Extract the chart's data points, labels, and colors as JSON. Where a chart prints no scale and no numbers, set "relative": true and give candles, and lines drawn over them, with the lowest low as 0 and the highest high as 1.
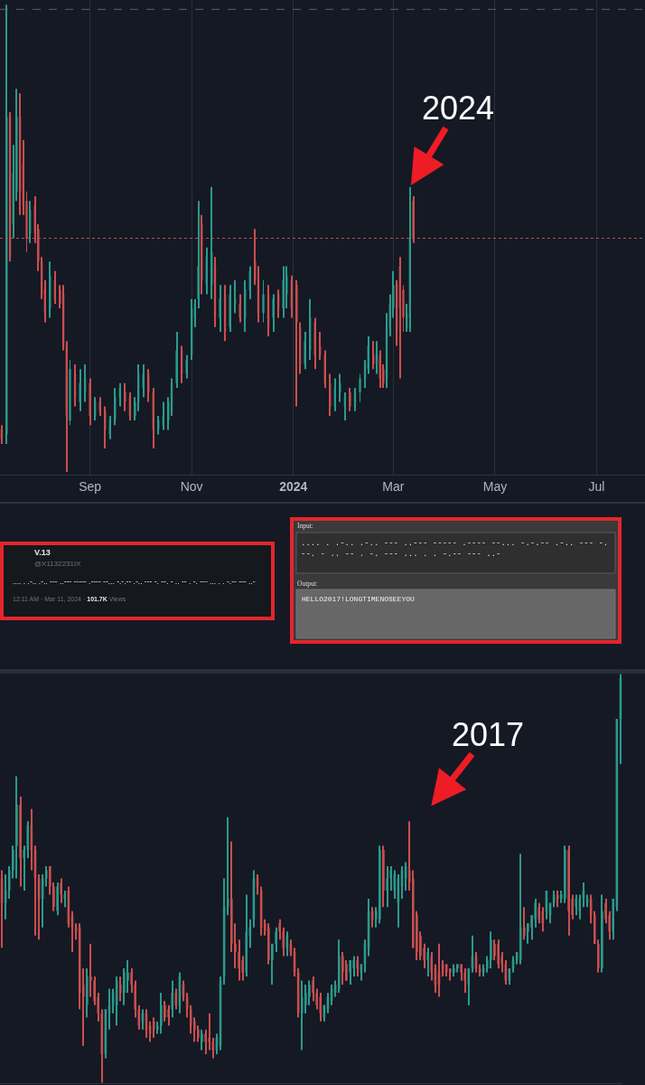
{
  "chart_data": [
    {
      "type": "candlestick",
      "relative": true,
      "x": [
        "2023-07-10",
        "2023-07-13",
        "2023-07-15",
        "2023-07-17",
        "2023-07-19",
        "2023-07-21",
        "2023-07-23",
        "2023-07-25",
        "2023-07-27",
        "2023-07-30",
        "2023-08-01",
        "2023-08-03",
        "2023-08-05",
        "2023-08-08",
        "2023-08-11",
        "2023-08-14",
        "2023-08-16",
        "2023-08-18",
        "2023-08-20",
        "2023-08-23",
        "2023-08-26",
        "2023-08-29",
        "2023-09-01",
        "2023-09-04",
        "2023-09-07",
        "2023-09-10",
        "2023-09-13",
        "2023-09-16",
        "2023-09-19",
        "2023-09-22",
        "2023-09-25",
        "2023-09-28",
        "2023-09-30",
        "2023-10-03",
        "2023-10-06",
        "2023-10-09",
        "2023-10-12",
        "2023-10-15",
        "2023-10-18",
        "2023-10-20",
        "2023-10-23",
        "2023-10-26",
        "2023-10-29",
        "2023-11-01",
        "2023-11-03",
        "2023-11-05",
        "2023-11-07",
        "2023-11-10",
        "2023-11-13",
        "2023-11-15",
        "2023-11-18",
        "2023-11-21",
        "2023-11-24",
        "2023-11-27",
        "2023-11-30",
        "2023-12-03",
        "2023-12-06",
        "2023-12-09",
        "2023-12-11",
        "2023-12-14",
        "2023-12-17",
        "2023-12-20",
        "2023-12-23",
        "2023-12-26",
        "2023-12-28",
        "2023-12-31",
        "2024-01-03",
        "2024-01-05",
        "2024-01-08",
        "2024-01-11",
        "2024-01-14",
        "2024-01-17",
        "2024-01-20",
        "2024-01-23",
        "2024-01-26",
        "2024-01-29",
        "2024-02-01",
        "2024-02-04",
        "2024-02-07",
        "2024-02-10",
        "2024-02-13",
        "2024-02-15",
        "2024-02-18",
        "2024-02-20",
        "2024-02-22",
        "2024-02-24",
        "2024-02-26",
        "2024-02-28",
        "2024-03-01",
        "2024-03-03",
        "2024-03-05",
        "2024-03-07",
        "2024-03-09",
        "2024-03-11",
        "2024-03-13"
      ],
      "ohlc": [
        [
          0.09,
          0.1,
          0.06,
          0.07
        ],
        [
          0.08,
          1.0,
          0.06,
          0.76
        ],
        [
          0.76,
          0.77,
          0.45,
          0.46
        ],
        [
          0.53,
          0.7,
          0.5,
          0.64
        ],
        [
          0.6,
          0.82,
          0.58,
          0.76
        ],
        [
          0.76,
          0.81,
          0.55,
          0.6
        ],
        [
          0.66,
          0.71,
          0.55,
          0.57
        ],
        [
          0.58,
          0.6,
          0.47,
          0.5
        ],
        [
          0.51,
          0.58,
          0.49,
          0.56
        ],
        [
          0.57,
          0.59,
          0.49,
          0.51
        ],
        [
          0.52,
          0.53,
          0.43,
          0.45
        ],
        [
          0.45,
          0.46,
          0.37,
          0.38
        ],
        [
          0.39,
          0.41,
          0.32,
          0.34
        ],
        [
          0.35,
          0.45,
          0.33,
          0.42
        ],
        [
          0.41,
          0.43,
          0.36,
          0.37
        ],
        [
          0.39,
          0.4,
          0.35,
          0.36
        ],
        [
          0.38,
          0.4,
          0.26,
          0.27
        ],
        [
          0.27,
          0.28,
          0.0,
          0.12
        ],
        [
          0.11,
          0.24,
          0.1,
          0.22
        ],
        [
          0.21,
          0.23,
          0.14,
          0.16
        ],
        [
          0.15,
          0.22,
          0.13,
          0.19
        ],
        [
          0.17,
          0.23,
          0.15,
          0.2
        ],
        [
          0.19,
          0.2,
          0.1,
          0.12
        ],
        [
          0.12,
          0.16,
          0.11,
          0.15
        ],
        [
          0.15,
          0.16,
          0.12,
          0.13
        ],
        [
          0.13,
          0.14,
          0.05,
          0.09
        ],
        [
          0.08,
          0.12,
          0.07,
          0.11
        ],
        [
          0.11,
          0.18,
          0.1,
          0.16
        ],
        [
          0.16,
          0.19,
          0.14,
          0.18
        ],
        [
          0.17,
          0.19,
          0.13,
          0.15
        ],
        [
          0.16,
          0.17,
          0.11,
          0.12
        ],
        [
          0.12,
          0.16,
          0.11,
          0.15
        ],
        [
          0.15,
          0.23,
          0.13,
          0.21
        ],
        [
          0.18,
          0.23,
          0.16,
          0.21
        ],
        [
          0.21,
          0.22,
          0.15,
          0.17
        ],
        [
          0.17,
          0.18,
          0.05,
          0.09
        ],
        [
          0.09,
          0.12,
          0.08,
          0.11
        ],
        [
          0.1,
          0.15,
          0.09,
          0.12
        ],
        [
          0.11,
          0.16,
          0.09,
          0.15
        ],
        [
          0.13,
          0.2,
          0.12,
          0.19
        ],
        [
          0.19,
          0.3,
          0.18,
          0.26
        ],
        [
          0.26,
          0.27,
          0.19,
          0.21
        ],
        [
          0.21,
          0.25,
          0.2,
          0.24
        ],
        [
          0.25,
          0.37,
          0.24,
          0.35
        ],
        [
          0.33,
          0.37,
          0.31,
          0.36
        ],
        [
          0.37,
          0.58,
          0.35,
          0.44
        ],
        [
          0.53,
          0.55,
          0.38,
          0.41
        ],
        [
          0.4,
          0.48,
          0.38,
          0.46
        ],
        [
          0.4,
          0.61,
          0.37,
          0.47
        ],
        [
          0.44,
          0.46,
          0.31,
          0.33
        ],
        [
          0.33,
          0.4,
          0.3,
          0.37
        ],
        [
          0.38,
          0.4,
          0.28,
          0.3
        ],
        [
          0.31,
          0.4,
          0.3,
          0.38
        ],
        [
          0.36,
          0.41,
          0.34,
          0.37
        ],
        [
          0.36,
          0.38,
          0.32,
          0.33
        ],
        [
          0.33,
          0.41,
          0.3,
          0.39
        ],
        [
          0.39,
          0.44,
          0.37,
          0.43
        ],
        [
          0.45,
          0.52,
          0.4,
          0.41
        ],
        [
          0.41,
          0.44,
          0.32,
          0.34
        ],
        [
          0.34,
          0.41,
          0.32,
          0.38
        ],
        [
          0.38,
          0.4,
          0.29,
          0.31
        ],
        [
          0.33,
          0.38,
          0.3,
          0.37
        ],
        [
          0.38,
          0.39,
          0.33,
          0.35
        ],
        [
          0.35,
          0.44,
          0.33,
          0.41
        ],
        [
          0.38,
          0.44,
          0.35,
          0.42
        ],
        [
          0.41,
          0.42,
          0.33,
          0.35
        ],
        [
          0.4,
          0.41,
          0.14,
          0.32
        ],
        [
          0.31,
          0.32,
          0.21,
          0.23
        ],
        [
          0.23,
          0.3,
          0.22,
          0.28
        ],
        [
          0.26,
          0.37,
          0.24,
          0.33
        ],
        [
          0.32,
          0.33,
          0.22,
          0.25
        ],
        [
          0.27,
          0.3,
          0.24,
          0.25
        ],
        [
          0.25,
          0.26,
          0.18,
          0.19
        ],
        [
          0.19,
          0.21,
          0.12,
          0.14
        ],
        [
          0.14,
          0.2,
          0.13,
          0.18
        ],
        [
          0.17,
          0.21,
          0.15,
          0.19
        ],
        [
          0.14,
          0.17,
          0.11,
          0.16
        ],
        [
          0.17,
          0.18,
          0.13,
          0.14
        ],
        [
          0.14,
          0.18,
          0.13,
          0.17
        ],
        [
          0.17,
          0.21,
          0.15,
          0.2
        ],
        [
          0.2,
          0.24,
          0.18,
          0.23
        ],
        [
          0.22,
          0.29,
          0.21,
          0.27
        ],
        [
          0.25,
          0.28,
          0.22,
          0.23
        ],
        [
          0.23,
          0.28,
          0.21,
          0.26
        ],
        [
          0.25,
          0.26,
          0.18,
          0.2
        ],
        [
          0.22,
          0.23,
          0.18,
          0.19
        ],
        [
          0.2,
          0.34,
          0.18,
          0.31
        ],
        [
          0.31,
          0.38,
          0.29,
          0.36
        ],
        [
          0.35,
          0.43,
          0.33,
          0.4
        ],
        [
          0.4,
          0.41,
          0.27,
          0.3
        ],
        [
          0.44,
          0.46,
          0.2,
          0.35
        ],
        [
          0.39,
          0.4,
          0.3,
          0.33
        ],
        [
          0.31,
          0.36,
          0.3,
          0.34
        ],
        [
          0.33,
          0.61,
          0.3,
          0.5
        ],
        [
          0.58,
          0.59,
          0.49,
          0.5
        ]
      ],
      "xlim": [
        "2023-07-09",
        "2024-07-30"
      ],
      "xticks": [
        {
          "value": "2023-09-01",
          "label": "Sep"
        },
        {
          "value": "2023-11-01",
          "label": "Nov"
        },
        {
          "value": "2024-01-01",
          "label": "2024"
        },
        {
          "value": "2024-03-01",
          "label": "Mar"
        },
        {
          "value": "2024-05-01",
          "label": "May"
        },
        {
          "value": "2024-07-01",
          "label": "Jul"
        }
      ],
      "tick_labels": "x",
      "grid": "x",
      "ref_lines": [
        {
          "axis": "y",
          "value": 0.5,
          "color": "#c2514f",
          "line_style": "dotted"
        },
        {
          "axis": "y",
          "value": 0.99,
          "color": "#5d606b",
          "line_style": "dashed"
        }
      ],
      "annotations": [
        {
          "text": "2024",
          "x": "2024-03-11",
          "y": 0.61
        }
      ]
    },
    {
      "type": "other",
      "annotations": [
        "V.13",
        "@X1132231IX",
        ".... . .-.. .-.. --- ..--- ----- .---- --... -.-.-- .-.. --- -. --. - .. -- . -. --- ... . . -.-- --- ..-",
        "12:11 AM · Mar 11, 2024 · 101.7K Views"
      ]
    },
    {
      "type": "other",
      "annotations": [
        "Input:",
        ".... . .-.. .-.. --- ..--- ----- .---- --... -.-.-- .-.. --- -. --. - .. -- . -. --- ... . . -.-- --- ..-",
        "Output:",
        "HELLO2017!LONGTIMENOSEEYOU"
      ]
    },
    {
      "type": "candlestick",
      "relative": true,
      "categories": [
        null,
        null,
        null,
        null,
        null,
        null,
        null,
        null,
        null,
        null,
        null,
        null,
        null,
        null,
        null,
        null,
        null,
        null,
        null,
        null,
        null,
        null,
        null,
        null,
        null,
        null,
        null,
        null,
        null,
        null,
        null,
        null,
        null,
        null,
        null,
        null,
        null,
        null,
        null,
        null,
        null,
        null,
        null,
        null,
        null,
        null,
        null,
        null,
        null,
        null,
        null,
        null,
        null,
        null,
        null,
        null,
        null,
        null,
        null,
        null,
        null,
        null,
        null,
        null,
        null,
        null,
        null,
        null,
        null,
        null,
        null,
        null,
        null,
        null,
        null,
        null,
        null,
        null,
        null,
        null,
        null,
        null,
        null,
        null,
        null,
        null,
        null,
        null,
        null,
        null,
        null,
        null,
        null,
        null,
        null,
        null,
        null,
        null,
        null,
        null,
        null,
        null,
        null,
        null,
        null,
        null,
        null,
        null,
        null,
        null,
        null,
        null,
        null,
        null,
        null,
        null,
        null,
        null,
        null,
        null,
        null,
        null,
        null,
        null,
        null,
        null,
        null,
        null,
        null,
        null,
        null,
        null,
        null,
        null,
        null,
        null,
        null,
        null,
        null,
        null,
        null,
        null,
        null,
        null,
        null,
        null,
        null,
        null,
        null,
        null,
        null,
        null,
        null,
        null,
        null,
        null,
        null,
        null,
        null,
        null,
        null,
        null,
        null,
        null,
        null,
        null,
        null,
        null
      ],
      "ohlc": [
        [
          0.5,
          0.52,
          0.33,
          0.44
        ],
        [
          0.44,
          0.51,
          0.4,
          0.47
        ],
        [
          0.47,
          0.53,
          0.45,
          0.52
        ],
        [
          0.52,
          0.58,
          0.5,
          0.57
        ],
        [
          0.58,
          0.75,
          0.5,
          0.68
        ],
        [
          0.68,
          0.7,
          0.48,
          0.55
        ],
        [
          0.55,
          0.58,
          0.47,
          0.57
        ],
        [
          0.57,
          0.64,
          0.55,
          0.63
        ],
        [
          0.63,
          0.67,
          0.52,
          0.57
        ],
        [
          0.57,
          0.58,
          0.36,
          0.5
        ],
        [
          0.5,
          0.51,
          0.35,
          0.45
        ],
        [
          0.45,
          0.51,
          0.38,
          0.5
        ],
        [
          0.5,
          0.53,
          0.48,
          0.52
        ],
        [
          0.53,
          0.53,
          0.46,
          0.48
        ],
        [
          0.48,
          0.49,
          0.42,
          0.43
        ],
        [
          0.42,
          0.49,
          0.41,
          0.48
        ],
        [
          0.49,
          0.5,
          0.44,
          0.46
        ],
        [
          0.45,
          0.47,
          0.43,
          0.46
        ],
        [
          0.47,
          0.48,
          0.38,
          0.39
        ],
        [
          0.41,
          0.42,
          0.32,
          0.38
        ],
        [
          0.38,
          0.39,
          0.35,
          0.37
        ],
        [
          0.38,
          0.39,
          0.18,
          0.22
        ],
        [
          0.24,
          0.28,
          0.09,
          0.21
        ],
        [
          0.19,
          0.28,
          0.16,
          0.26
        ],
        [
          0.26,
          0.34,
          0.21,
          0.25
        ],
        [
          0.25,
          0.26,
          0.19,
          0.2
        ],
        [
          0.21,
          0.22,
          0.15,
          0.17
        ],
        [
          0.17,
          0.18,
          0.0,
          0.07
        ],
        [
          0.07,
          0.18,
          0.06,
          0.18
        ],
        [
          0.17,
          0.23,
          0.13,
          0.19
        ],
        [
          0.19,
          0.23,
          0.17,
          0.22
        ],
        [
          0.19,
          0.26,
          0.14,
          0.25
        ],
        [
          0.24,
          0.26,
          0.2,
          0.22
        ],
        [
          0.22,
          0.28,
          0.19,
          0.27
        ],
        [
          0.25,
          0.3,
          0.22,
          0.27
        ],
        [
          0.27,
          0.28,
          0.22,
          0.24
        ],
        [
          0.24,
          0.25,
          0.16,
          0.18
        ],
        [
          0.18,
          0.19,
          0.13,
          0.14
        ],
        [
          0.15,
          0.18,
          0.13,
          0.17
        ],
        [
          0.17,
          0.18,
          0.11,
          0.13
        ],
        [
          0.14,
          0.15,
          0.1,
          0.12
        ],
        [
          0.15,
          0.16,
          0.11,
          0.13
        ],
        [
          0.13,
          0.15,
          0.12,
          0.14
        ],
        [
          0.14,
          0.22,
          0.12,
          0.19
        ],
        [
          0.19,
          0.2,
          0.15,
          0.16
        ],
        [
          0.18,
          0.19,
          0.14,
          0.16
        ],
        [
          0.18,
          0.25,
          0.16,
          0.22
        ],
        [
          0.22,
          0.23,
          0.18,
          0.19
        ],
        [
          0.19,
          0.27,
          0.17,
          0.26
        ],
        [
          0.24,
          0.25,
          0.2,
          0.21
        ],
        [
          0.21,
          0.22,
          0.16,
          0.18
        ],
        [
          0.18,
          0.19,
          0.12,
          0.14
        ],
        [
          0.15,
          0.16,
          0.1,
          0.13
        ],
        [
          0.13,
          0.14,
          0.1,
          0.11
        ],
        [
          0.1,
          0.13,
          0.08,
          0.12
        ],
        [
          0.12,
          0.13,
          0.07,
          0.1
        ],
        [
          0.11,
          0.17,
          0.08,
          0.1
        ],
        [
          0.1,
          0.11,
          0.06,
          0.08
        ],
        [
          0.08,
          0.12,
          0.07,
          0.11
        ],
        [
          0.09,
          0.26,
          0.08,
          0.25
        ],
        [
          0.26,
          0.5,
          0.24,
          0.43
        ],
        [
          0.43,
          0.65,
          0.41,
          0.45
        ],
        [
          0.45,
          0.59,
          0.32,
          0.34
        ],
        [
          0.34,
          0.39,
          0.28,
          0.32
        ],
        [
          0.32,
          0.35,
          0.25,
          0.28
        ],
        [
          0.3,
          0.31,
          0.25,
          0.27
        ],
        [
          0.27,
          0.46,
          0.26,
          0.37
        ],
        [
          0.36,
          0.4,
          0.33,
          0.38
        ],
        [
          0.4,
          0.52,
          0.38,
          0.5
        ],
        [
          0.5,
          0.51,
          0.46,
          0.48
        ],
        [
          0.47,
          0.48,
          0.36,
          0.38
        ],
        [
          0.39,
          0.4,
          0.36,
          0.37
        ],
        [
          0.38,
          0.39,
          0.29,
          0.3
        ],
        [
          0.3,
          0.34,
          0.24,
          0.34
        ],
        [
          0.34,
          0.38,
          0.32,
          0.37
        ],
        [
          0.39,
          0.4,
          0.35,
          0.37
        ],
        [
          0.37,
          0.38,
          0.31,
          0.33
        ],
        [
          0.33,
          0.37,
          0.31,
          0.36
        ],
        [
          0.34,
          0.35,
          0.31,
          0.32
        ],
        [
          0.32,
          0.33,
          0.26,
          0.27
        ],
        [
          0.27,
          0.28,
          0.16,
          0.17
        ],
        [
          0.17,
          0.25,
          0.08,
          0.21
        ],
        [
          0.19,
          0.24,
          0.17,
          0.22
        ],
        [
          0.21,
          0.25,
          0.19,
          0.24
        ],
        [
          0.25,
          0.26,
          0.2,
          0.22
        ],
        [
          0.22,
          0.23,
          0.18,
          0.19
        ],
        [
          0.21,
          0.22,
          0.15,
          0.17
        ],
        [
          0.16,
          0.19,
          0.15,
          0.19
        ],
        [
          0.18,
          0.22,
          0.17,
          0.21
        ],
        [
          0.2,
          0.24,
          0.19,
          0.23
        ],
        [
          0.22,
          0.25,
          0.21,
          0.24
        ],
        [
          0.23,
          0.35,
          0.22,
          0.31
        ],
        [
          0.31,
          0.32,
          0.24,
          0.27
        ],
        [
          0.29,
          0.3,
          0.25,
          0.25
        ],
        [
          0.27,
          0.3,
          0.24,
          0.3
        ],
        [
          0.28,
          0.31,
          0.26,
          0.3
        ],
        [
          0.3,
          0.31,
          0.26,
          0.28
        ],
        [
          0.27,
          0.29,
          0.25,
          0.29
        ],
        [
          0.29,
          0.35,
          0.27,
          0.34
        ],
        [
          0.33,
          0.45,
          0.31,
          0.42
        ],
        [
          0.42,
          0.43,
          0.38,
          0.4
        ],
        [
          0.4,
          0.43,
          0.38,
          0.42
        ],
        [
          0.4,
          0.58,
          0.39,
          0.57
        ],
        [
          0.57,
          0.58,
          0.43,
          0.47
        ],
        [
          0.47,
          0.53,
          0.43,
          0.5
        ],
        [
          0.5,
          0.53,
          0.47,
          0.52
        ],
        [
          0.47,
          0.52,
          0.45,
          0.51
        ],
        [
          0.44,
          0.51,
          0.38,
          0.5
        ],
        [
          0.48,
          0.53,
          0.45,
          0.52
        ],
        [
          0.5,
          0.54,
          0.47,
          0.53
        ],
        [
          0.52,
          0.64,
          0.47,
          0.49
        ],
        [
          0.5,
          0.52,
          0.33,
          0.33
        ],
        [
          0.41,
          0.42,
          0.3,
          0.32
        ],
        [
          0.36,
          0.37,
          0.3,
          0.31
        ],
        [
          0.33,
          0.34,
          0.28,
          0.3
        ],
        [
          0.3,
          0.33,
          0.26,
          0.32
        ],
        [
          0.31,
          0.32,
          0.25,
          0.27
        ],
        [
          0.28,
          0.29,
          0.22,
          0.24
        ],
        [
          0.27,
          0.34,
          0.21,
          0.24
        ],
        [
          0.29,
          0.3,
          0.26,
          0.27
        ],
        [
          0.29,
          0.29,
          0.26,
          0.27
        ],
        [
          0.28,
          0.28,
          0.25,
          0.27
        ],
        [
          0.27,
          0.29,
          0.26,
          0.28
        ],
        [
          0.28,
          0.29,
          0.27,
          0.29
        ],
        [
          0.29,
          0.29,
          0.25,
          0.27
        ],
        [
          0.27,
          0.28,
          0.22,
          0.25
        ],
        [
          0.24,
          0.28,
          0.19,
          0.28
        ],
        [
          0.28,
          0.36,
          0.27,
          0.31
        ],
        [
          0.31,
          0.32,
          0.27,
          0.28
        ],
        [
          0.28,
          0.29,
          0.26,
          0.27
        ],
        [
          0.27,
          0.29,
          0.26,
          0.28
        ],
        [
          0.28,
          0.31,
          0.27,
          0.3
        ],
        [
          0.3,
          0.37,
          0.28,
          0.35
        ],
        [
          0.34,
          0.35,
          0.3,
          0.31
        ],
        [
          0.34,
          0.35,
          0.28,
          0.29
        ],
        [
          0.31,
          0.32,
          0.27,
          0.29
        ],
        [
          0.29,
          0.3,
          0.24,
          0.25
        ],
        [
          0.25,
          0.28,
          0.24,
          0.28
        ],
        [
          0.28,
          0.31,
          0.27,
          0.3
        ],
        [
          0.3,
          0.32,
          0.29,
          0.32
        ],
        [
          0.3,
          0.56,
          0.29,
          0.38
        ],
        [
          0.38,
          0.43,
          0.35,
          0.36
        ],
        [
          0.37,
          0.39,
          0.34,
          0.39
        ],
        [
          0.38,
          0.41,
          0.35,
          0.41
        ],
        [
          0.4,
          0.45,
          0.38,
          0.44
        ],
        [
          0.43,
          0.44,
          0.39,
          0.4
        ],
        [
          0.42,
          0.43,
          0.37,
          0.39
        ],
        [
          0.42,
          0.47,
          0.4,
          0.47
        ],
        [
          0.41,
          0.44,
          0.39,
          0.44
        ],
        [
          0.44,
          0.47,
          0.43,
          0.46
        ],
        [
          0.46,
          0.47,
          0.43,
          0.45
        ],
        [
          0.45,
          0.47,
          0.44,
          0.46
        ],
        [
          0.45,
          0.58,
          0.44,
          0.57
        ],
        [
          0.57,
          0.58,
          0.36,
          0.42
        ],
        [
          0.45,
          0.46,
          0.4,
          0.41
        ],
        [
          0.43,
          0.46,
          0.41,
          0.45
        ],
        [
          0.42,
          0.46,
          0.4,
          0.45
        ],
        [
          0.45,
          0.49,
          0.43,
          0.47
        ],
        [
          0.44,
          0.46,
          0.43,
          0.45
        ],
        [
          0.45,
          0.46,
          0.39,
          0.41
        ],
        [
          0.41,
          0.42,
          0.34,
          0.34
        ],
        [
          0.34,
          0.35,
          0.27,
          0.28
        ],
        [
          0.28,
          0.46,
          0.27,
          0.42
        ],
        [
          0.44,
          0.45,
          0.39,
          0.4
        ],
        [
          0.41,
          0.42,
          0.35,
          0.37
        ],
        [
          0.37,
          0.45,
          0.35,
          0.45
        ],
        [
          0.43,
          0.89,
          0.42,
          0.89
        ],
        [
          0.89,
          1.0,
          0.78,
          0.99
        ]
      ],
      "annotations": [
        "2017"
      ]
    }
  ]
}
